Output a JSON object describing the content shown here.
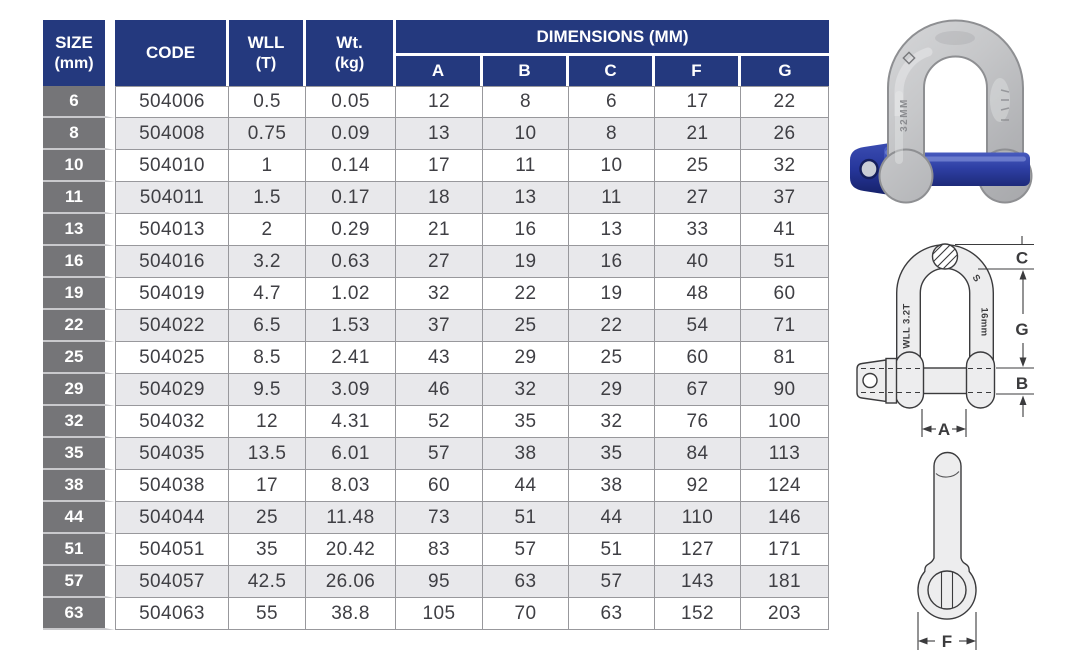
{
  "colors": {
    "navy": "#24397E",
    "size-gray": "#757578",
    "row-alt": "#E8E8EB",
    "grid": "#98989C",
    "ink": "#3F3F44",
    "size-divider": "#C9C9CC",
    "drawing-line": "#3B3B3D",
    "drawing-fill": "#EDEDEE",
    "pin-blue": "#2E3FA4",
    "pin-blue-dark": "#1A2670",
    "pin-blue-light": "#4C5FC2",
    "steel-light": "#DADBDD",
    "steel-dark": "#A3A4A7"
  },
  "table": {
    "header": {
      "size_line1": "SIZE",
      "size_line2": "(mm)",
      "code": "CODE",
      "wll_line1": "WLL",
      "wll_line2": "(T)",
      "wt_line1": "Wt.",
      "wt_line2": "(kg)",
      "dimensions": "DIMENSIONS (MM)",
      "dim_cols": [
        "A",
        "B",
        "C",
        "F",
        "G"
      ]
    },
    "rows": [
      {
        "size": "6",
        "code": "504006",
        "wll": "0.5",
        "wt": "0.05",
        "a": "12",
        "b": "8",
        "c": "6",
        "f": "17",
        "g": "22"
      },
      {
        "size": "8",
        "code": "504008",
        "wll": "0.75",
        "wt": "0.09",
        "a": "13",
        "b": "10",
        "c": "8",
        "f": "21",
        "g": "26"
      },
      {
        "size": "10",
        "code": "504010",
        "wll": "1",
        "wt": "0.14",
        "a": "17",
        "b": "11",
        "c": "10",
        "f": "25",
        "g": "32"
      },
      {
        "size": "11",
        "code": "504011",
        "wll": "1.5",
        "wt": "0.17",
        "a": "18",
        "b": "13",
        "c": "11",
        "f": "27",
        "g": "37"
      },
      {
        "size": "13",
        "code": "504013",
        "wll": "2",
        "wt": "0.29",
        "a": "21",
        "b": "16",
        "c": "13",
        "f": "33",
        "g": "41"
      },
      {
        "size": "16",
        "code": "504016",
        "wll": "3.2",
        "wt": "0.63",
        "a": "27",
        "b": "19",
        "c": "16",
        "f": "40",
        "g": "51"
      },
      {
        "size": "19",
        "code": "504019",
        "wll": "4.7",
        "wt": "1.02",
        "a": "32",
        "b": "22",
        "c": "19",
        "f": "48",
        "g": "60"
      },
      {
        "size": "22",
        "code": "504022",
        "wll": "6.5",
        "wt": "1.53",
        "a": "37",
        "b": "25",
        "c": "22",
        "f": "54",
        "g": "71"
      },
      {
        "size": "25",
        "code": "504025",
        "wll": "8.5",
        "wt": "2.41",
        "a": "43",
        "b": "29",
        "c": "25",
        "f": "60",
        "g": "81"
      },
      {
        "size": "29",
        "code": "504029",
        "wll": "9.5",
        "wt": "3.09",
        "a": "46",
        "b": "32",
        "c": "29",
        "f": "67",
        "g": "90"
      },
      {
        "size": "32",
        "code": "504032",
        "wll": "12",
        "wt": "4.31",
        "a": "52",
        "b": "35",
        "c": "32",
        "f": "76",
        "g": "100"
      },
      {
        "size": "35",
        "code": "504035",
        "wll": "13.5",
        "wt": "6.01",
        "a": "57",
        "b": "38",
        "c": "35",
        "f": "84",
        "g": "113"
      },
      {
        "size": "38",
        "code": "504038",
        "wll": "17",
        "wt": "8.03",
        "a": "60",
        "b": "44",
        "c": "38",
        "f": "92",
        "g": "124"
      },
      {
        "size": "44",
        "code": "504044",
        "wll": "25",
        "wt": "11.48",
        "a": "73",
        "b": "51",
        "c": "44",
        "f": "110",
        "g": "146"
      },
      {
        "size": "51",
        "code": "504051",
        "wll": "35",
        "wt": "20.42",
        "a": "83",
        "b": "57",
        "c": "51",
        "f": "127",
        "g": "171"
      },
      {
        "size": "57",
        "code": "504057",
        "wll": "42.5",
        "wt": "26.06",
        "a": "95",
        "b": "63",
        "c": "57",
        "f": "143",
        "g": "181"
      },
      {
        "size": "63",
        "code": "504063",
        "wll": "55",
        "wt": "38.8",
        "a": "105",
        "b": "70",
        "c": "63",
        "f": "152",
        "g": "203"
      }
    ]
  },
  "figures": {
    "photo": {
      "marking": "32MM"
    },
    "front_diagram": {
      "dim_c": "C",
      "dim_g": "G",
      "dim_b": "B",
      "dim_a": "A",
      "marking_wll": "WLL 3.2T",
      "marking_size": "16mm",
      "marking_s": "S"
    },
    "side_diagram": {
      "dim_f": "F"
    }
  }
}
